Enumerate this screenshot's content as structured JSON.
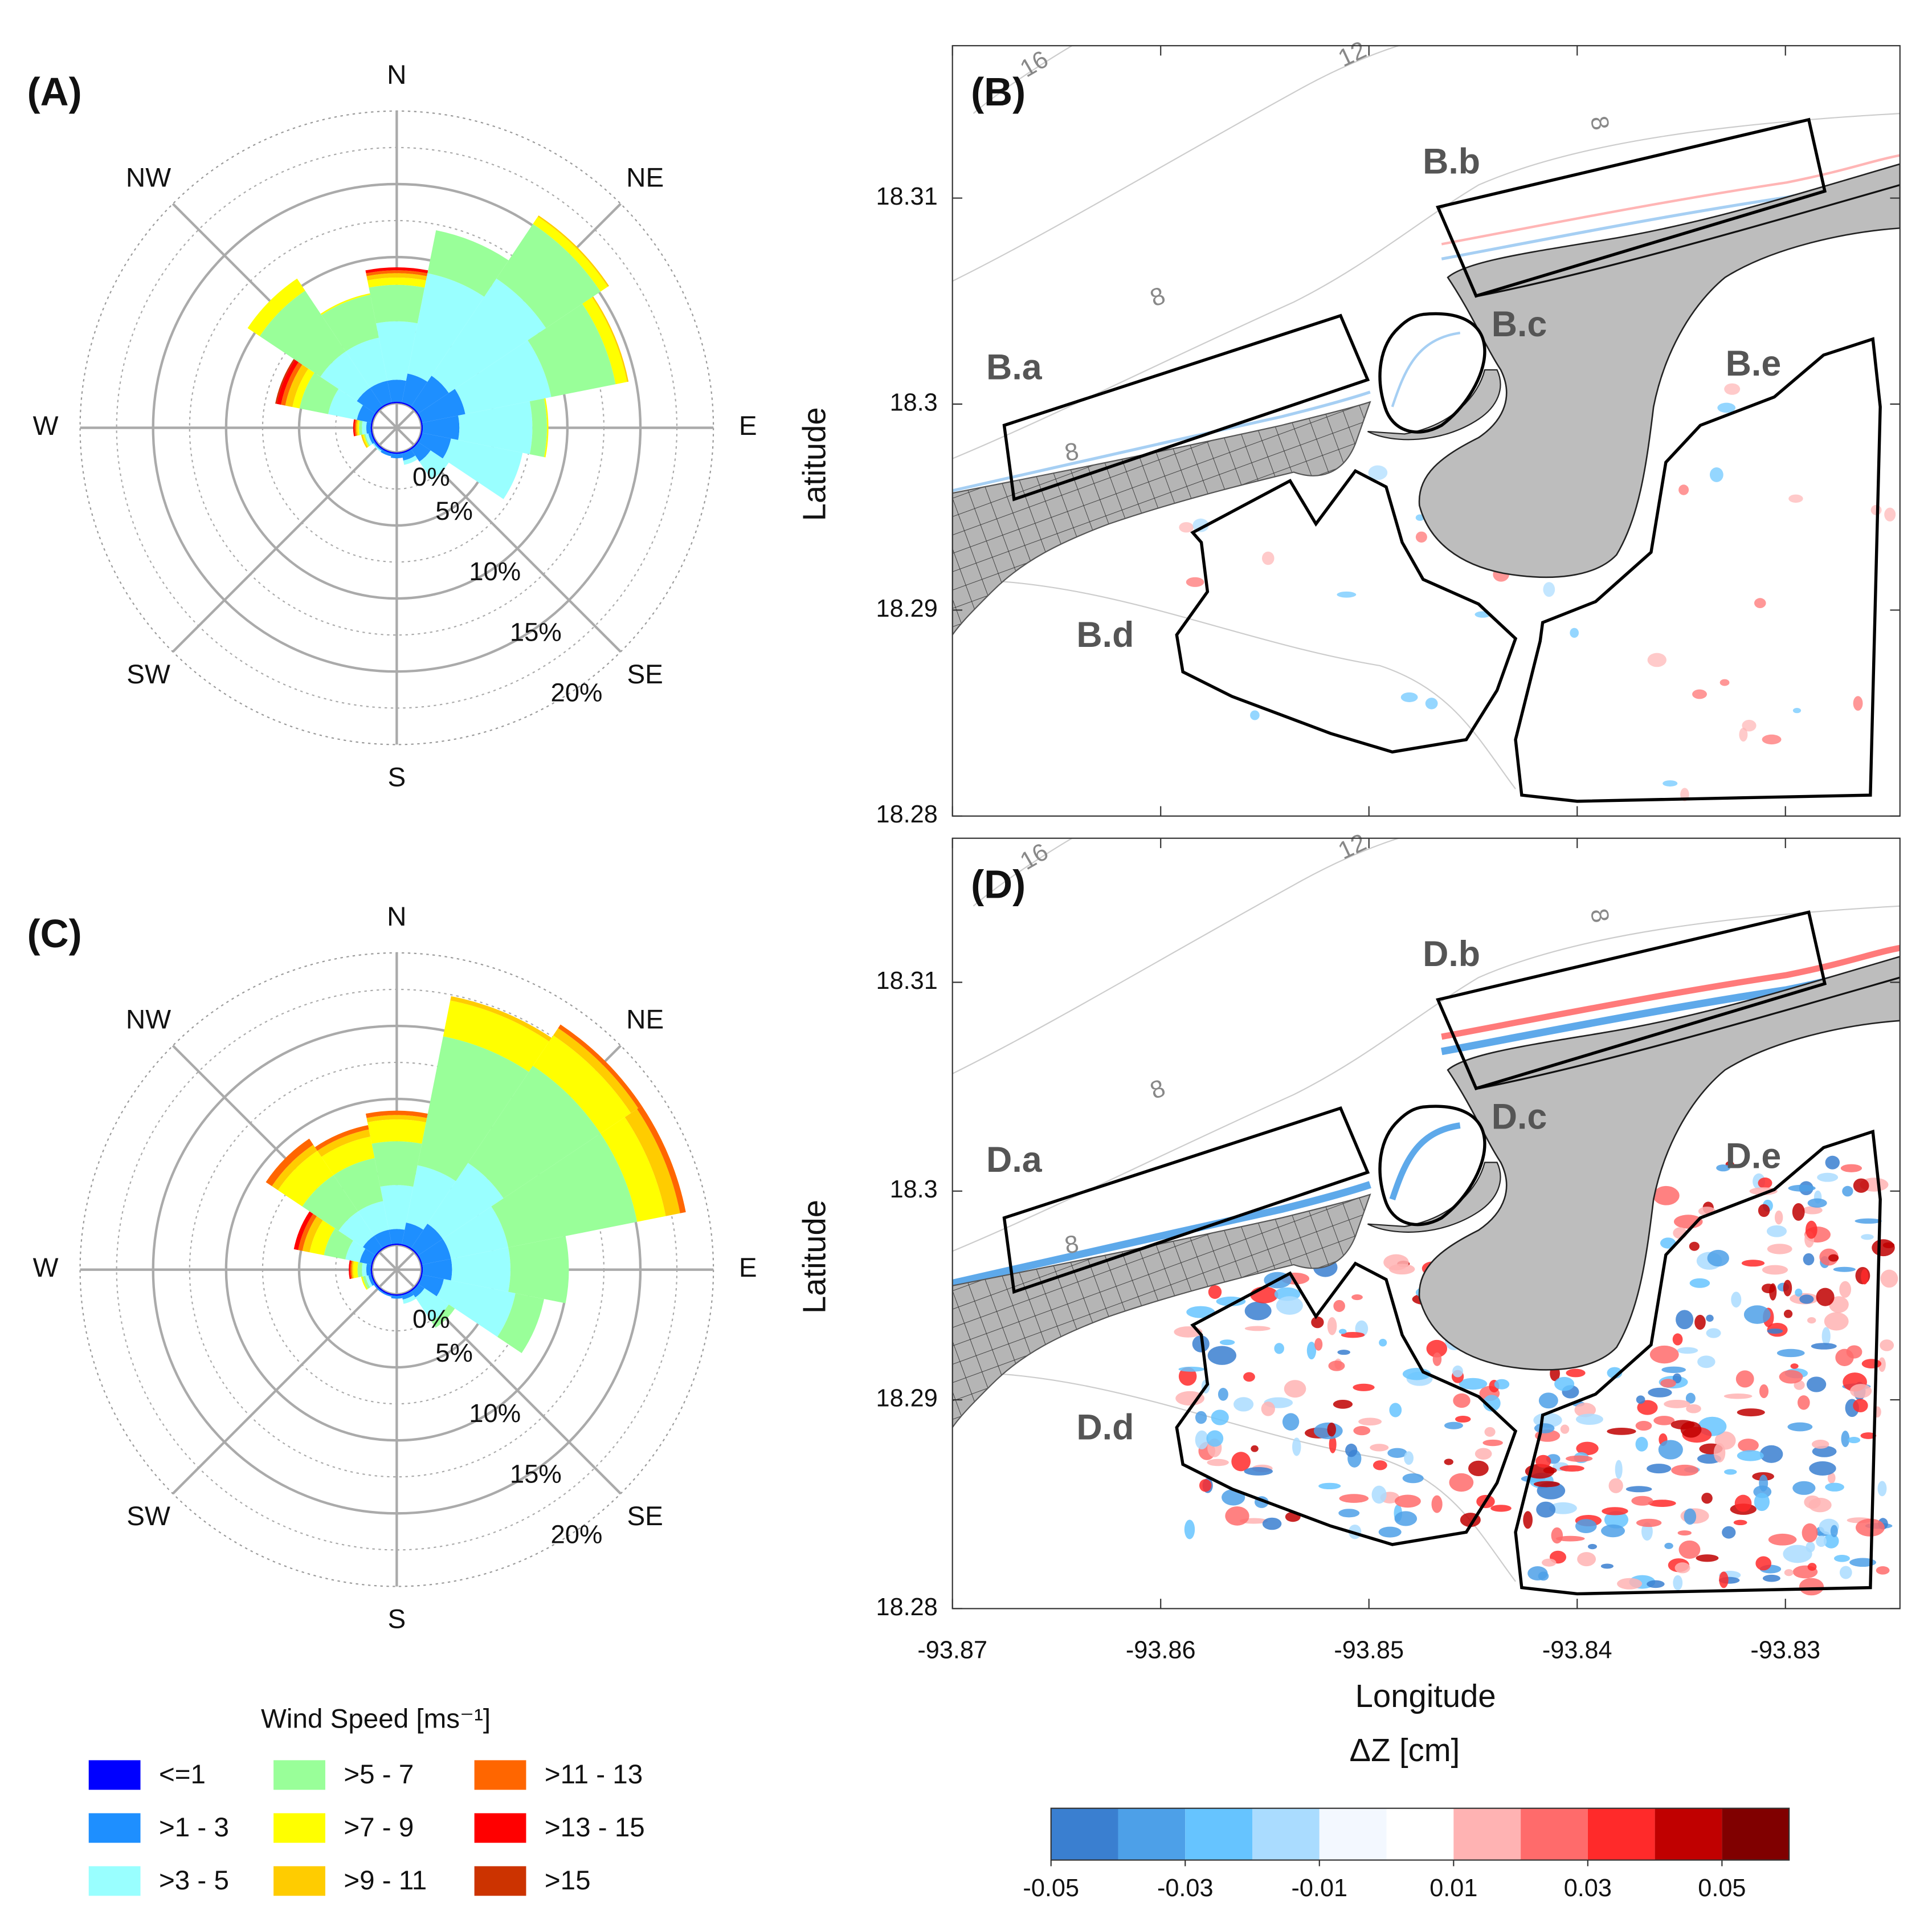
{
  "chart_data": [
    {
      "type": "wind_rose",
      "label": "(A)",
      "categories": [
        "N",
        null,
        "NE",
        null,
        "E",
        null,
        "SE",
        null,
        "S",
        null,
        "SW",
        null,
        "W",
        null,
        "NW",
        null
      ],
      "rlim": [
        0,
        20
      ],
      "rticks": [
        {
          "value": 0,
          "label": "0%"
        },
        {
          "value": 5,
          "label": "5%"
        },
        {
          "value": 10,
          "label": "10%"
        },
        {
          "value": 15,
          "label": "15%"
        },
        {
          "value": 20,
          "label": "20%"
        }
      ],
      "series": [
        {
          "values": [
            0.1,
            0.1,
            0.1,
            0.1,
            0.1,
            0.1,
            0.1,
            0.1,
            0.1,
            0.1,
            0.1,
            0.1,
            0.1,
            0.1,
            0.1,
            0.1
          ]
        },
        {
          "values": [
            1.5,
            2,
            2.5,
            3,
            2.5,
            2,
            1,
            0.5,
            0.3,
            0.2,
            0.1,
            0.2,
            0.3,
            1,
            1.5,
            1.5
          ]
        },
        {
          "values": [
            4,
            7,
            8,
            6,
            5,
            5,
            1.5,
            0.3,
            0,
            0,
            0.1,
            0.2,
            0.3,
            2,
            3,
            3
          ]
        },
        {
          "values": [
            2.5,
            3,
            4.5,
            4.5,
            1,
            0,
            0,
            0,
            0,
            0,
            0,
            0.1,
            0.2,
            2,
            5,
            3
          ]
        },
        {
          "values": [
            0.5,
            0,
            0.6,
            0.8,
            0.1,
            0,
            0,
            0,
            0,
            0,
            0,
            0.1,
            0.1,
            0.5,
            1,
            0.1
          ]
        },
        {
          "values": [
            0.3,
            0,
            0.1,
            0.1,
            0,
            0,
            0,
            0,
            0,
            0,
            0,
            0.1,
            0.1,
            0.5,
            0,
            0
          ]
        },
        {
          "values": [
            0.2,
            0,
            0,
            0,
            0,
            0,
            0,
            0,
            0,
            0,
            0,
            0,
            0.1,
            0.3,
            0,
            0
          ]
        },
        {
          "values": [
            0.2,
            0,
            0,
            0,
            0,
            0,
            0,
            0,
            0,
            0,
            0,
            0,
            0.1,
            0.3,
            0,
            0
          ]
        },
        {
          "values": [
            0,
            0,
            0,
            0,
            0,
            0,
            0,
            0,
            0,
            0,
            0,
            0,
            0,
            0.1,
            0,
            0
          ]
        }
      ]
    },
    {
      "type": "map",
      "label": "(B)",
      "xlim": [
        -93.87,
        -93.8245
      ],
      "ylim": [
        18.28,
        18.3174
      ],
      "xticks": [
        -93.87,
        -93.86,
        -93.85,
        -93.84,
        -93.83
      ],
      "yticks": [
        18.28,
        18.29,
        18.3,
        18.31
      ],
      "show_xtick_labels": false,
      "ylabel": "Latitude",
      "region_labels": [
        "B.a",
        "B.b",
        "B.c",
        "B.d",
        "B.e"
      ],
      "contour_labels": [
        "16",
        "12",
        "8",
        "8",
        "8"
      ],
      "response": "weak"
    },
    {
      "type": "wind_rose",
      "label": "(C)",
      "categories": [
        "N",
        null,
        "NE",
        null,
        "E",
        null,
        "SE",
        null,
        "S",
        null,
        "SW",
        null,
        "W",
        null,
        "NW",
        null
      ],
      "rlim": [
        0,
        20
      ],
      "rticks": [
        {
          "value": 0,
          "label": "0%"
        },
        {
          "value": 5,
          "label": "5%"
        },
        {
          "value": 10,
          "label": "10%"
        },
        {
          "value": 15,
          "label": "15%"
        },
        {
          "value": 20,
          "label": "20%"
        }
      ],
      "series": [
        {
          "values": [
            0.1,
            0.1,
            0.1,
            0.1,
            0.1,
            0.1,
            0.1,
            0.1,
            0.1,
            0.1,
            0.1,
            0.1,
            0.1,
            0.1,
            0.1,
            0.1
          ]
        },
        {
          "values": [
            1,
            1.5,
            2,
            2,
            2,
            1.5,
            0.5,
            0.3,
            0.2,
            0.1,
            0.1,
            0.2,
            0.3,
            0.8,
            1,
            1
          ]
        },
        {
          "values": [
            3,
            4,
            5,
            4,
            4,
            5,
            2,
            0.3,
            0,
            0,
            0,
            0.2,
            0.3,
            1,
            2,
            2
          ]
        },
        {
          "values": [
            3,
            9,
            8,
            9,
            4,
            2,
            0.5,
            0,
            0,
            0,
            0,
            0.2,
            0.3,
            1.5,
            3,
            3
          ]
        },
        {
          "values": [
            1.5,
            2.5,
            2.5,
            2,
            0,
            0,
            0,
            0,
            0,
            0,
            0,
            0.1,
            0.3,
            1,
            2,
            1.5
          ]
        },
        {
          "values": [
            0.3,
            0.3,
            0.6,
            1,
            0,
            0,
            0,
            0,
            0,
            0,
            0,
            0,
            0.1,
            0.5,
            0.5,
            0.5
          ]
        },
        {
          "values": [
            0.3,
            0,
            0.3,
            0.4,
            0,
            0,
            0,
            0,
            0,
            0,
            0,
            0,
            0.1,
            0.3,
            0.5,
            0.3
          ]
        },
        {
          "values": [
            0,
            0,
            0,
            0,
            0,
            0,
            0,
            0,
            0,
            0,
            0,
            0,
            0.1,
            0.3,
            0,
            0
          ]
        },
        {
          "values": [
            0,
            0,
            0,
            0,
            0,
            0,
            0,
            0,
            0,
            0,
            0,
            0,
            0,
            0,
            0,
            0
          ]
        }
      ]
    },
    {
      "type": "map",
      "label": "(D)",
      "xlim": [
        -93.87,
        -93.8245
      ],
      "ylim": [
        18.28,
        18.3169
      ],
      "xticks": [
        -93.87,
        -93.86,
        -93.85,
        -93.84,
        -93.83
      ],
      "yticks": [
        18.28,
        18.29,
        18.3,
        18.31
      ],
      "show_xtick_labels": true,
      "xlabel": "Longitude",
      "ylabel": "Latitude",
      "region_labels": [
        "D.a",
        "D.b",
        "D.c",
        "D.d",
        "D.e"
      ],
      "contour_labels": [
        "16",
        "12",
        "8",
        "8",
        "8"
      ],
      "response": "strong"
    }
  ],
  "legend": {
    "title": "Wind Speed [ms⁻¹]",
    "entries": [
      {
        "name": "<=1",
        "color": "#0000ff"
      },
      {
        "name": ">1 - 3",
        "color": "#1e8fff"
      },
      {
        "name": ">3 - 5",
        "color": "#99ffff"
      },
      {
        "name": ">5 - 7",
        "color": "#99ff99"
      },
      {
        "name": ">7 - 9",
        "color": "#ffff00"
      },
      {
        "name": ">9 - 11",
        "color": "#ffcc00"
      },
      {
        "name": ">11 - 13",
        "color": "#ff6600"
      },
      {
        "name": ">13 - 15",
        "color": "#ff0000"
      },
      {
        "name": ">15",
        "color": "#cc3300"
      }
    ]
  },
  "colorbar": {
    "title": "ΔZ [cm]",
    "clim": [
      -0.05,
      0.06
    ],
    "levels": [
      -0.05,
      -0.04,
      -0.03,
      -0.02,
      -0.01,
      0,
      0.01,
      0.02,
      0.03,
      0.04,
      0.05,
      0.06
    ],
    "colors": [
      "#3a7fd0",
      "#4da0e8",
      "#66c4ff",
      "#aadcff",
      "#f3f8ff",
      "#ffffff",
      "#ffb3b3",
      "#ff6b6b",
      "#ff2a2a",
      "#c00000",
      "#800000"
    ],
    "ticks": [
      -0.05,
      -0.03,
      -0.01,
      0.01,
      0.03,
      0.05
    ]
  }
}
